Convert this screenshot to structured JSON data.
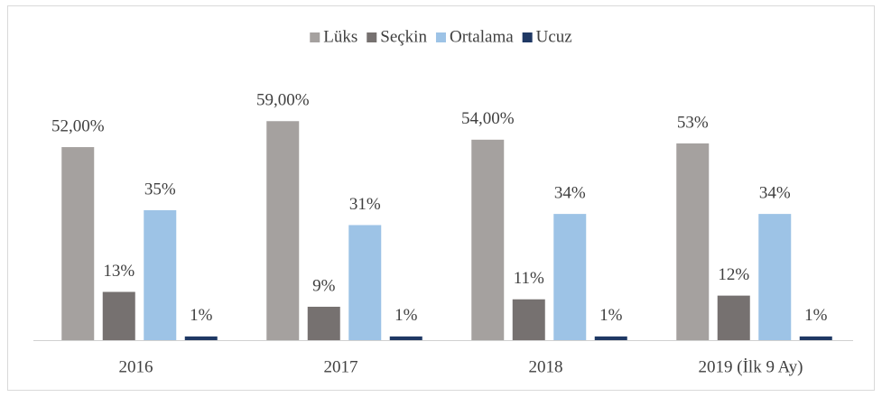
{
  "chart_data": {
    "type": "bar",
    "categories": [
      "2016",
      "2017",
      "2018",
      "2019 (İlk 9 Ay)"
    ],
    "series": [
      {
        "name": "Lüks",
        "color": "#a5a19f",
        "values": [
          52,
          59,
          54,
          53
        ],
        "value_labels": [
          "52,00%",
          "59,00%",
          "54,00%",
          "53%"
        ]
      },
      {
        "name": "Seçkin",
        "color": "#767170",
        "values": [
          13,
          9,
          11,
          12
        ],
        "value_labels": [
          "13%",
          "9%",
          "11%",
          "12%"
        ]
      },
      {
        "name": "Ortalama",
        "color": "#9dc3e6",
        "values": [
          35,
          31,
          34,
          34
        ],
        "value_labels": [
          "35%",
          "31%",
          "34%",
          "34%"
        ]
      },
      {
        "name": "Ucuz",
        "color": "#1f3864",
        "values": [
          1,
          1,
          1,
          1
        ],
        "value_labels": [
          "1%",
          "1%",
          "1%",
          "1%"
        ]
      }
    ],
    "ylim": [
      0,
      70
    ],
    "legend": "top"
  }
}
